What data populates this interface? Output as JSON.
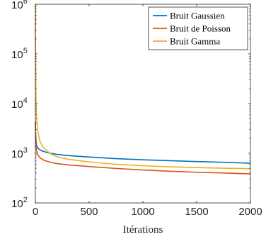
{
  "chart_data": {
    "type": "line",
    "title": "",
    "xlabel": "Itérations",
    "ylabel": "",
    "xlim": [
      0,
      2000
    ],
    "ylim": [
      100,
      1000000
    ],
    "yscale": "log",
    "x_ticks": [
      0,
      500,
      1000,
      1500,
      2000
    ],
    "x_tick_labels": [
      "0",
      "500",
      "1000",
      "1500",
      "2000"
    ],
    "y_ticks": [
      100,
      1000,
      10000,
      100000,
      1000000
    ],
    "y_tick_labels": [
      {
        "base": "10",
        "exp": "2"
      },
      {
        "base": "10",
        "exp": "3"
      },
      {
        "base": "10",
        "exp": "4"
      },
      {
        "base": "10",
        "exp": "5"
      },
      {
        "base": "10",
        "exp": "6"
      }
    ],
    "grid": false,
    "legend_position": "top-right",
    "series": [
      {
        "name": "Bruit Gaussien",
        "color": "#0072BD",
        "x": [
          0,
          2,
          5,
          10,
          20,
          40,
          70,
          100,
          150,
          200,
          300,
          500,
          750,
          1000,
          1250,
          1500,
          1750,
          2000
        ],
        "y": [
          4000,
          2700,
          1900,
          1500,
          1300,
          1180,
          1100,
          1050,
          990,
          950,
          900,
          840,
          780,
          740,
          710,
          680,
          660,
          630
        ]
      },
      {
        "name": "Bruit de Poisson",
        "color": "#D95319",
        "x": [
          0,
          2,
          5,
          10,
          20,
          40,
          70,
          100,
          150,
          200,
          300,
          500,
          750,
          1000,
          1250,
          1500,
          1750,
          2000
        ],
        "y": [
          4500,
          2400,
          1600,
          1200,
          950,
          820,
          740,
          700,
          650,
          620,
          585,
          540,
          495,
          460,
          435,
          415,
          400,
          385
        ]
      },
      {
        "name": "Bruit Gamma",
        "color": "#EDB120",
        "x": [
          0,
          2,
          5,
          10,
          20,
          40,
          70,
          100,
          150,
          200,
          300,
          500,
          750,
          1000,
          1250,
          1500,
          1750,
          2000
        ],
        "y": [
          1000000,
          100000,
          16000,
          6000,
          3000,
          1800,
          1350,
          1150,
          950,
          850,
          760,
          670,
          600,
          560,
          535,
          515,
          500,
          490
        ]
      }
    ]
  }
}
